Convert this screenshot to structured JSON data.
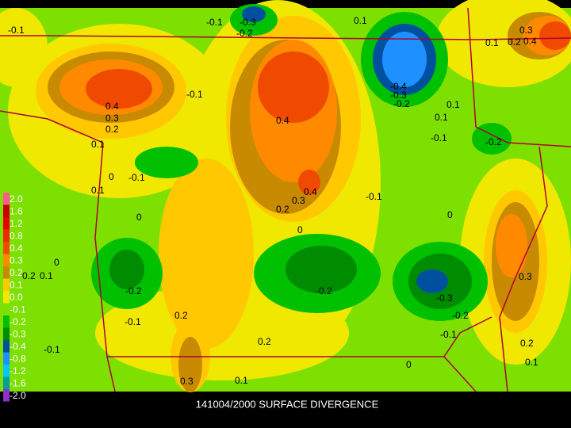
{
  "title": "141004/2000 SURFACE DIVERGENCE",
  "legend": [
    {
      "label": "2.0",
      "color": "#ff5a8c"
    },
    {
      "label": "1.6",
      "color": "#c80000"
    },
    {
      "label": "1.2",
      "color": "#e60000"
    },
    {
      "label": "0.8",
      "color": "#f02800"
    },
    {
      "label": "0.4",
      "color": "#f04a00"
    },
    {
      "label": "0.3",
      "color": "#ff8a00"
    },
    {
      "label": "0.2",
      "color": "#c88a00"
    },
    {
      "label": "0.1",
      "color": "#ffc800"
    },
    {
      "label": "0.0",
      "color": "#f0e800"
    },
    {
      "label": "-0.1",
      "color": "#7ee000"
    },
    {
      "label": "-0.2",
      "color": "#00c000"
    },
    {
      "label": "-0.3",
      "color": "#008c00"
    },
    {
      "label": "-0.4",
      "color": "#0050a0"
    },
    {
      "label": "-0.8",
      "color": "#1e90ff"
    },
    {
      "label": "-1.2",
      "color": "#00c8f0"
    },
    {
      "label": "-1.6",
      "color": "#00a0a0"
    },
    {
      "label": "-2.0",
      "color": "#8c32c8"
    }
  ],
  "contour_labels": [
    "-0.1",
    "-0.1",
    "-0.3",
    "-0.2",
    "0.1",
    "0.3",
    "0.1",
    "0.2",
    "0.4",
    "0.4",
    "0.3",
    "0.2",
    "-0.1",
    "0.1",
    "0.4",
    "-0.4",
    "-0.3",
    "-0.2",
    "0.1",
    "0.1",
    "-0.1",
    "-0.2",
    "0",
    "-0.1",
    "0.1",
    "0.4",
    "0.3",
    "0.2",
    "0",
    "-0.1",
    "0",
    "0",
    "0",
    "-0.2",
    "-0.2",
    "-0.3",
    "0.3",
    "-0.1",
    "0.2",
    "-0.2",
    "-0.1",
    "0.2",
    "0",
    "0.2",
    "0.1",
    "0.3",
    "0.1",
    "-0.1",
    "0.2",
    "0.1"
  ]
}
